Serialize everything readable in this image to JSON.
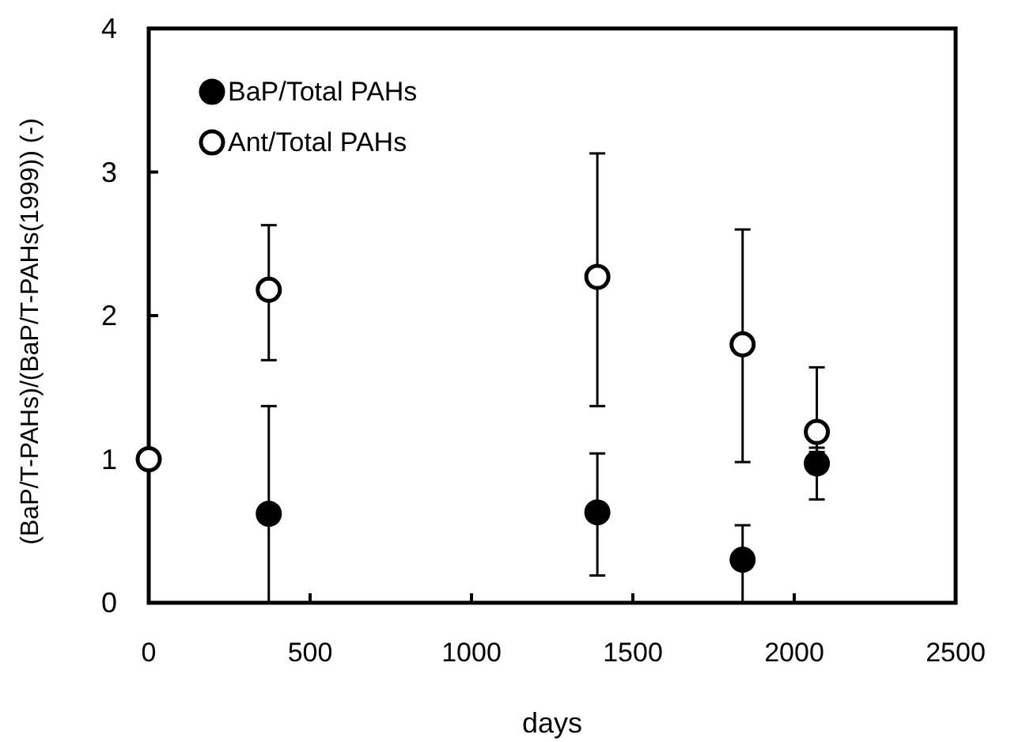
{
  "chart_data": {
    "type": "scatter",
    "xlabel": "days",
    "ylabel": "(BaP/T-PAHs)/(BaP/T-PAHs(1999)) (-)",
    "series": [
      {
        "name": "BaP/Total PAHs",
        "color": "#000000",
        "x": [
          372,
          1390,
          1840,
          2070
        ],
        "values": [
          0.62,
          0.63,
          0.3,
          0.97
        ],
        "errors": [
          [
            0,
            1.37
          ],
          [
            0.19,
            1.04
          ],
          [
            0,
            0.54
          ],
          [
            0.72,
            1.08
          ]
        ],
        "marker": "circle"
      },
      {
        "name": "Ant/Total PAHs",
        "color": "#ffffff",
        "x": [
          0,
          372,
          1390,
          1840,
          2070
        ],
        "values": [
          1,
          2.18,
          2.27,
          1.8,
          1.19
        ],
        "errors": [
          null,
          [
            1.69,
            2.63
          ],
          [
            1.37,
            3.13
          ],
          [
            0.98,
            2.6
          ],
          [
            1.05,
            1.64
          ]
        ],
        "marker": "circle"
      }
    ],
    "xlim": [
      0,
      2500
    ],
    "xticks": [
      0,
      500,
      1000,
      1500,
      2000,
      2500
    ],
    "ylim": [
      0,
      4
    ],
    "yticks": [
      0,
      1,
      2,
      3,
      4
    ],
    "grid": false,
    "legend": "top left"
  }
}
